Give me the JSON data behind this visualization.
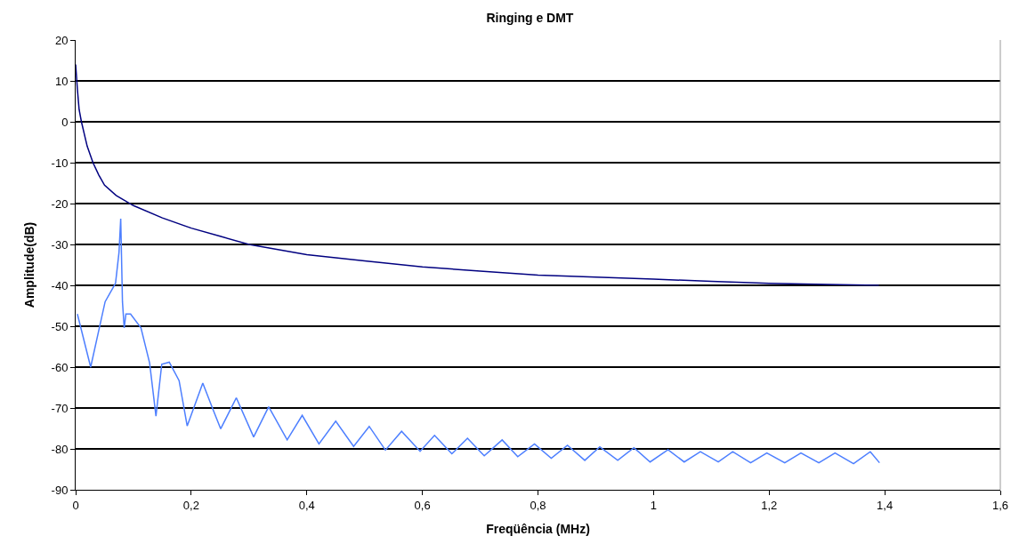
{
  "chart_data": {
    "type": "line",
    "title": "Ringing e DMT",
    "xlabel": "Freqüência (MHz)",
    "ylabel": "Amplitude(dB)",
    "xlim": [
      0,
      1.6
    ],
    "ylim": [
      -90,
      20
    ],
    "xticks": [
      {
        "value": 0,
        "label": "0"
      },
      {
        "value": 0.2,
        "label": "0,2"
      },
      {
        "value": 0.4,
        "label": "0,4"
      },
      {
        "value": 0.6,
        "label": "0,6"
      },
      {
        "value": 0.8,
        "label": "0,8"
      },
      {
        "value": 1,
        "label": "1"
      },
      {
        "value": 1.2,
        "label": "1,2"
      },
      {
        "value": 1.4,
        "label": "1,4"
      },
      {
        "value": 1.6,
        "label": "1,6"
      }
    ],
    "yticks": [
      20,
      10,
      0,
      -10,
      -20,
      -30,
      -40,
      -50,
      -60,
      -70,
      -80,
      -90
    ],
    "grid": "y",
    "marker": "none",
    "line_style": "solid",
    "series": [
      {
        "color": "#000080",
        "x": [
          0,
          0.003,
          0.006,
          0.01,
          0.015,
          0.02,
          0.03,
          0.04,
          0.05,
          0.07,
          0.1,
          0.15,
          0.2,
          0.25,
          0.3,
          0.4,
          0.5,
          0.6,
          0.7,
          0.8,
          0.9,
          1.0,
          1.1,
          1.2,
          1.3,
          1.39
        ],
        "values": [
          14,
          8,
          3,
          0,
          -3,
          -6,
          -10,
          -13,
          -15.5,
          -18,
          -20.5,
          -23.5,
          -26,
          -28,
          -30,
          -32.5,
          -34,
          -35.5,
          -36.5,
          -37.5,
          -38,
          -38.5,
          -39,
          -39.5,
          -39.8,
          -40
        ]
      },
      {
        "color": "#4d7fff",
        "x": [
          0.003,
          0.026,
          0.051,
          0.069,
          0.075,
          0.078,
          0.081,
          0.084,
          0.087,
          0.095,
          0.113,
          0.128,
          0.139,
          0.149,
          0.162,
          0.179,
          0.193,
          0.22,
          0.238,
          0.251,
          0.278,
          0.308,
          0.334,
          0.366,
          0.392,
          0.421,
          0.45,
          0.481,
          0.508,
          0.536,
          0.564,
          0.596,
          0.621,
          0.651,
          0.678,
          0.707,
          0.738,
          0.765,
          0.794,
          0.823,
          0.851,
          0.881,
          0.907,
          0.938,
          0.966,
          0.994,
          1.025,
          1.053,
          1.081,
          1.112,
          1.137,
          1.168,
          1.196,
          1.227,
          1.255,
          1.286,
          1.314,
          1.346,
          1.375,
          1.391
        ],
        "values": [
          -47,
          -60,
          -44,
          -39.5,
          -32,
          -23.7,
          -44,
          -50.4,
          -47,
          -47,
          -50.4,
          -59,
          -72,
          -59.3,
          -58.8,
          -63.3,
          -74.4,
          -63.9,
          -70.5,
          -75.1,
          -67.5,
          -77.1,
          -69.7,
          -77.8,
          -71.8,
          -78.8,
          -73.2,
          -79.4,
          -74.5,
          -80.3,
          -75.7,
          -80.6,
          -76.7,
          -81.2,
          -77.4,
          -81.7,
          -77.8,
          -81.9,
          -78.8,
          -82.3,
          -79.1,
          -82.8,
          -79.5,
          -82.8,
          -79.7,
          -83.2,
          -80.2,
          -83.2,
          -80.7,
          -83.2,
          -80.7,
          -83.4,
          -81,
          -83.4,
          -81,
          -83.4,
          -81,
          -83.6,
          -80.7,
          -83.4
        ]
      }
    ]
  }
}
